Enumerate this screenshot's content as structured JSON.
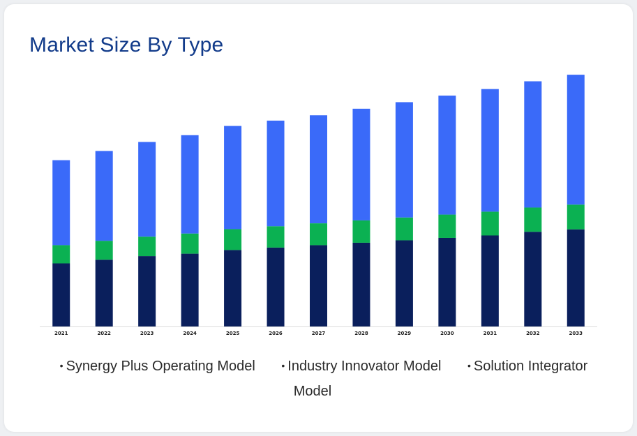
{
  "title": "Market Size By Type",
  "chart_data": {
    "type": "bar",
    "stacked": true,
    "title": "Market Size By Type",
    "xlabel": "",
    "ylabel": "",
    "grid": false,
    "legend_position": "bottom",
    "categories": [
      "2021",
      "2022",
      "2023",
      "2024",
      "2025",
      "2026",
      "2027",
      "2028",
      "2029",
      "2030",
      "2031",
      "2032",
      "2033"
    ],
    "ylim": [
      0,
      100
    ],
    "series": [
      {
        "name": "Synergy Plus Operating Model",
        "color": "#0a1f5c",
        "values": [
          26,
          27.5,
          29,
          30,
          31.5,
          32.5,
          33.5,
          34.5,
          35.5,
          36.5,
          37.5,
          39,
          40
        ]
      },
      {
        "name": "Industry Innovator Model",
        "color": "#0bb152",
        "values": [
          7.5,
          7.8,
          8,
          8.3,
          8.6,
          8.8,
          9,
          9.2,
          9.4,
          9.6,
          9.8,
          10,
          10.2
        ]
      },
      {
        "name": "Solution Integrator Model",
        "color": "#3a6af9",
        "values": [
          35,
          37,
          39,
          40.5,
          42.5,
          43.5,
          44.5,
          46,
          47.5,
          49,
          50.5,
          52,
          53.5
        ]
      }
    ]
  }
}
